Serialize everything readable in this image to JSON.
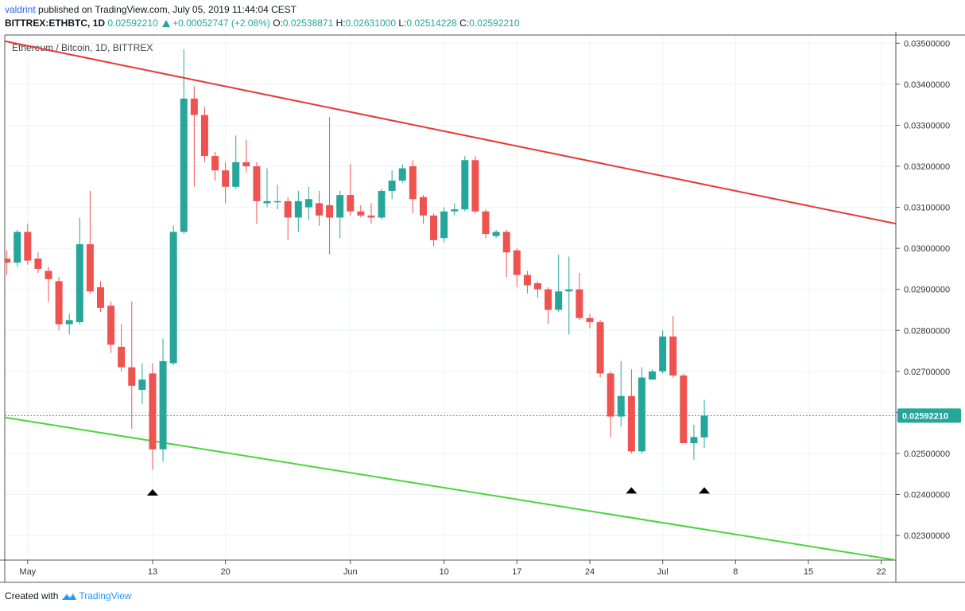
{
  "header": {
    "publisher": "valdrint",
    "published_text": "published on TradingView.com, July 05, 2019 11:44:04 CEST",
    "symbol": "BITTREX:ETHBTC, 1D",
    "last": "0.02592210",
    "change": "+0.00052747 (+2.08%)",
    "o_label": "O:",
    "o_value": "0.02538871",
    "h_label": "H:",
    "h_value": "0.02631000",
    "l_label": "L:",
    "l_value": "0.02514228",
    "c_label": "C:",
    "c_value": "0.02592210"
  },
  "footer": {
    "created_with": "Created with",
    "brand": "TradingView"
  },
  "chart_data": {
    "type": "candlestick",
    "title": "Ethereum / Bitcoin, 1D, BITTREX",
    "colors": {
      "up": "#26a69a",
      "down": "#ef5350",
      "resistance": "#e53935",
      "support": "#4ad43c",
      "grid": "#eef2f7",
      "price_line": "#26a69a"
    },
    "ylim": [
      0.0224,
      0.0352
    ],
    "y_ticks": [
      "0.03500000",
      "0.03400000",
      "0.03300000",
      "0.03200000",
      "0.03100000",
      "0.03000000",
      "0.02900000",
      "0.02800000",
      "0.02700000",
      "0.02600000",
      "0.02500000",
      "0.02400000",
      "0.02300000"
    ],
    "x_ticks": [
      {
        "label": "May",
        "day": 1
      },
      {
        "label": "13",
        "day": 13
      },
      {
        "label": "20",
        "day": 20
      },
      {
        "label": "Jun",
        "day": 32
      },
      {
        "label": "10",
        "day": 41
      },
      {
        "label": "17",
        "day": 48
      },
      {
        "label": "24",
        "day": 55
      },
      {
        "label": "Jul",
        "day": 62
      },
      {
        "label": "8",
        "day": 69
      },
      {
        "label": "15",
        "day": 76
      },
      {
        "label": "22",
        "day": 83
      }
    ],
    "x_range_days": [
      -1.2,
      84.4
    ],
    "last_price": 0.0259221,
    "last_price_label": "0.02592210",
    "candles": [
      {
        "d": -1,
        "o": 0.02975,
        "h": 0.02995,
        "l": 0.02935,
        "c": 0.02965
      },
      {
        "d": 0,
        "o": 0.02965,
        "h": 0.03045,
        "l": 0.02955,
        "c": 0.0304
      },
      {
        "d": 1,
        "o": 0.0304,
        "h": 0.0306,
        "l": 0.0296,
        "c": 0.0297
      },
      {
        "d": 2,
        "o": 0.02975,
        "h": 0.0299,
        "l": 0.0294,
        "c": 0.0295
      },
      {
        "d": 3,
        "o": 0.02945,
        "h": 0.02955,
        "l": 0.0287,
        "c": 0.02925
      },
      {
        "d": 4,
        "o": 0.0292,
        "h": 0.0293,
        "l": 0.028,
        "c": 0.02815
      },
      {
        "d": 5,
        "o": 0.02815,
        "h": 0.0284,
        "l": 0.0279,
        "c": 0.02825
      },
      {
        "d": 6,
        "o": 0.0282,
        "h": 0.03075,
        "l": 0.02815,
        "c": 0.0301
      },
      {
        "d": 7,
        "o": 0.0301,
        "h": 0.0314,
        "l": 0.0289,
        "c": 0.02895
      },
      {
        "d": 8,
        "o": 0.02905,
        "h": 0.0292,
        "l": 0.02845,
        "c": 0.02855
      },
      {
        "d": 9,
        "o": 0.0286,
        "h": 0.0287,
        "l": 0.02745,
        "c": 0.02765
      },
      {
        "d": 10,
        "o": 0.0276,
        "h": 0.02815,
        "l": 0.027,
        "c": 0.0271
      },
      {
        "d": 11,
        "o": 0.0271,
        "h": 0.0287,
        "l": 0.0256,
        "c": 0.02665
      },
      {
        "d": 12,
        "o": 0.02655,
        "h": 0.0272,
        "l": 0.0262,
        "c": 0.0268
      },
      {
        "d": 13,
        "o": 0.02695,
        "h": 0.0272,
        "l": 0.0246,
        "c": 0.0251
      },
      {
        "d": 14,
        "o": 0.0251,
        "h": 0.0278,
        "l": 0.0248,
        "c": 0.02725
      },
      {
        "d": 15,
        "o": 0.0272,
        "h": 0.03055,
        "l": 0.02715,
        "c": 0.0304
      },
      {
        "d": 16,
        "o": 0.0304,
        "h": 0.03485,
        "l": 0.03035,
        "c": 0.03365
      },
      {
        "d": 17,
        "o": 0.03365,
        "h": 0.03395,
        "l": 0.0315,
        "c": 0.03325
      },
      {
        "d": 18,
        "o": 0.03325,
        "h": 0.03345,
        "l": 0.0321,
        "c": 0.03225
      },
      {
        "d": 19,
        "o": 0.03225,
        "h": 0.03235,
        "l": 0.03165,
        "c": 0.0319
      },
      {
        "d": 20,
        "o": 0.0319,
        "h": 0.0321,
        "l": 0.0311,
        "c": 0.0315
      },
      {
        "d": 21,
        "o": 0.0315,
        "h": 0.03275,
        "l": 0.03145,
        "c": 0.0321
      },
      {
        "d": 22,
        "o": 0.0321,
        "h": 0.03265,
        "l": 0.03185,
        "c": 0.032
      },
      {
        "d": 23,
        "o": 0.032,
        "h": 0.0321,
        "l": 0.0306,
        "c": 0.03115
      },
      {
        "d": 24,
        "o": 0.0311,
        "h": 0.03195,
        "l": 0.031,
        "c": 0.03115
      },
      {
        "d": 25,
        "o": 0.03115,
        "h": 0.03155,
        "l": 0.03095,
        "c": 0.03115
      },
      {
        "d": 26,
        "o": 0.03115,
        "h": 0.03125,
        "l": 0.0302,
        "c": 0.03075
      },
      {
        "d": 27,
        "o": 0.03075,
        "h": 0.0314,
        "l": 0.0304,
        "c": 0.03115
      },
      {
        "d": 28,
        "o": 0.031,
        "h": 0.0315,
        "l": 0.0307,
        "c": 0.0312
      },
      {
        "d": 29,
        "o": 0.0311,
        "h": 0.0314,
        "l": 0.03055,
        "c": 0.0308
      },
      {
        "d": 30,
        "o": 0.03105,
        "h": 0.0332,
        "l": 0.02985,
        "c": 0.03075
      },
      {
        "d": 31,
        "o": 0.03075,
        "h": 0.0314,
        "l": 0.03025,
        "c": 0.0313
      },
      {
        "d": 32,
        "o": 0.0313,
        "h": 0.03205,
        "l": 0.0308,
        "c": 0.0309
      },
      {
        "d": 33,
        "o": 0.0309,
        "h": 0.03105,
        "l": 0.03075,
        "c": 0.0308
      },
      {
        "d": 34,
        "o": 0.0308,
        "h": 0.0311,
        "l": 0.0306,
        "c": 0.03075
      },
      {
        "d": 35,
        "o": 0.03075,
        "h": 0.03145,
        "l": 0.0307,
        "c": 0.0314
      },
      {
        "d": 36,
        "o": 0.0314,
        "h": 0.0319,
        "l": 0.0312,
        "c": 0.03165
      },
      {
        "d": 37,
        "o": 0.03165,
        "h": 0.03205,
        "l": 0.0316,
        "c": 0.03195
      },
      {
        "d": 38,
        "o": 0.032,
        "h": 0.03215,
        "l": 0.03085,
        "c": 0.0312
      },
      {
        "d": 39,
        "o": 0.03125,
        "h": 0.0313,
        "l": 0.0306,
        "c": 0.0308
      },
      {
        "d": 40,
        "o": 0.0308,
        "h": 0.03085,
        "l": 0.03005,
        "c": 0.0302
      },
      {
        "d": 41,
        "o": 0.03025,
        "h": 0.031,
        "l": 0.03015,
        "c": 0.0309
      },
      {
        "d": 42,
        "o": 0.0309,
        "h": 0.0311,
        "l": 0.0308,
        "c": 0.03095
      },
      {
        "d": 43,
        "o": 0.03095,
        "h": 0.03225,
        "l": 0.0309,
        "c": 0.03215
      },
      {
        "d": 44,
        "o": 0.03215,
        "h": 0.03225,
        "l": 0.03085,
        "c": 0.0309
      },
      {
        "d": 45,
        "o": 0.0309,
        "h": 0.03095,
        "l": 0.03025,
        "c": 0.03035
      },
      {
        "d": 46,
        "o": 0.0303,
        "h": 0.03045,
        "l": 0.03025,
        "c": 0.0304
      },
      {
        "d": 47,
        "o": 0.0304,
        "h": 0.03045,
        "l": 0.0293,
        "c": 0.0299
      },
      {
        "d": 48,
        "o": 0.02995,
        "h": 0.03,
        "l": 0.02905,
        "c": 0.02935
      },
      {
        "d": 49,
        "o": 0.02935,
        "h": 0.02945,
        "l": 0.0289,
        "c": 0.0291
      },
      {
        "d": 50,
        "o": 0.02915,
        "h": 0.0292,
        "l": 0.0288,
        "c": 0.029
      },
      {
        "d": 51,
        "o": 0.029,
        "h": 0.02905,
        "l": 0.02815,
        "c": 0.0285
      },
      {
        "d": 52,
        "o": 0.0285,
        "h": 0.02985,
        "l": 0.02845,
        "c": 0.02895
      },
      {
        "d": 53,
        "o": 0.02895,
        "h": 0.0298,
        "l": 0.0279,
        "c": 0.029
      },
      {
        "d": 54,
        "o": 0.029,
        "h": 0.0294,
        "l": 0.02825,
        "c": 0.0283
      },
      {
        "d": 55,
        "o": 0.0283,
        "h": 0.0284,
        "l": 0.02805,
        "c": 0.0282
      },
      {
        "d": 56,
        "o": 0.0282,
        "h": 0.02825,
        "l": 0.02685,
        "c": 0.02695
      },
      {
        "d": 57,
        "o": 0.02695,
        "h": 0.027,
        "l": 0.0254,
        "c": 0.0259
      },
      {
        "d": 58,
        "o": 0.0259,
        "h": 0.02725,
        "l": 0.02565,
        "c": 0.0264
      },
      {
        "d": 59,
        "o": 0.0264,
        "h": 0.02705,
        "l": 0.025,
        "c": 0.02505
      },
      {
        "d": 60,
        "o": 0.02505,
        "h": 0.0271,
        "l": 0.025,
        "c": 0.02685
      },
      {
        "d": 61,
        "o": 0.0268,
        "h": 0.02705,
        "l": 0.02685,
        "c": 0.027
      },
      {
        "d": 62,
        "o": 0.027,
        "h": 0.028,
        "l": 0.02695,
        "c": 0.02785
      },
      {
        "d": 63,
        "o": 0.02785,
        "h": 0.02835,
        "l": 0.02685,
        "c": 0.0269
      },
      {
        "d": 64,
        "o": 0.0269,
        "h": 0.02695,
        "l": 0.02525,
        "c": 0.02525
      },
      {
        "d": 65,
        "o": 0.02525,
        "h": 0.0257,
        "l": 0.02485,
        "c": 0.0254
      },
      {
        "d": 66,
        "o": 0.02539,
        "h": 0.02631,
        "l": 0.02514,
        "c": 0.02592
      }
    ],
    "resistance_line": {
      "points": [
        {
          "d": -1.2,
          "y": 0.03505
        },
        {
          "d": 84.4,
          "y": 0.0306
        }
      ]
    },
    "support_line": {
      "points": [
        {
          "d": -1.2,
          "y": 0.02588
        },
        {
          "d": 84.4,
          "y": 0.0224
        }
      ]
    },
    "markers": [
      {
        "d": 13,
        "y": 0.02405,
        "shape": "triangle-up"
      },
      {
        "d": 59,
        "y": 0.0241,
        "shape": "triangle-up"
      },
      {
        "d": 66,
        "y": 0.0241,
        "shape": "triangle-up"
      }
    ]
  }
}
